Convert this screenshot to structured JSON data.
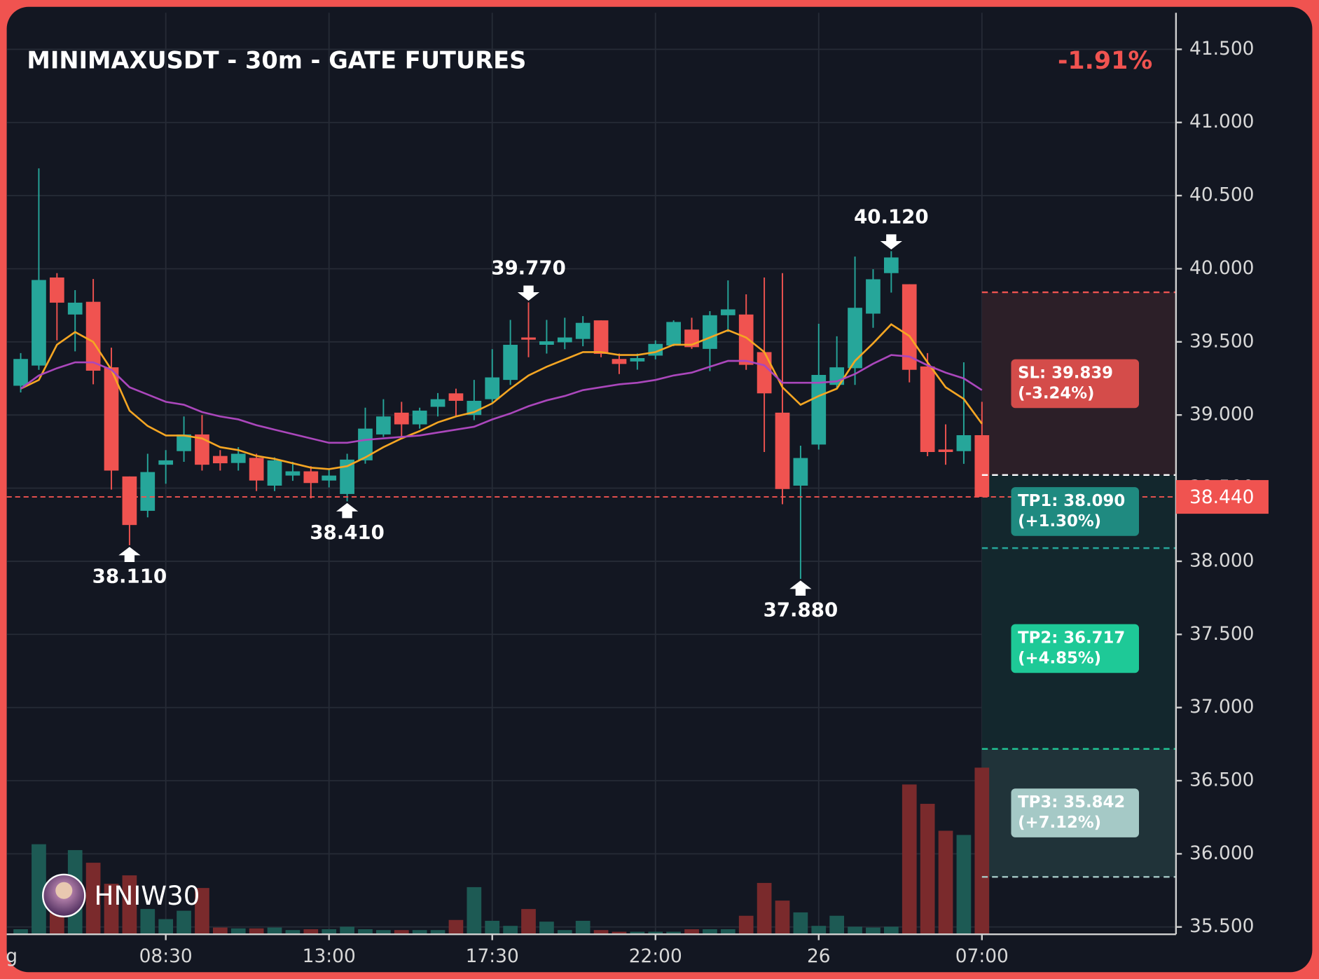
{
  "chart_data": {
    "type": "candlestick",
    "title": "MINIMAXUSDT - 30m - GATE FUTURES",
    "change": "-1.91%",
    "watermark": "HNIW30",
    "open": [
      39.2,
      39.338,
      39.94,
      39.687,
      39.774,
      39.326,
      38.58,
      38.345,
      38.66,
      38.753,
      38.867,
      38.72,
      38.672,
      38.707,
      38.517,
      38.586,
      38.615,
      38.552,
      38.46,
      38.69,
      38.867,
      39.016,
      38.936,
      39.056,
      39.148,
      39.0,
      39.108,
      39.24,
      39.53,
      39.48,
      39.497,
      39.52,
      39.647,
      39.383,
      39.366,
      39.406,
      39.475,
      39.584,
      39.452,
      39.682,
      39.687,
      39.43,
      39.016,
      38.517,
      38.798,
      39.206,
      39.32,
      39.693,
      39.97,
      39.894,
      39.332,
      38.764,
      38.753,
      38.862
    ],
    "high": [
      39.423,
      40.686,
      39.97,
      39.854,
      39.93,
      39.46,
      38.58,
      38.735,
      38.76,
      38.99,
      39.0,
      38.76,
      38.78,
      38.735,
      38.71,
      38.68,
      38.65,
      38.63,
      38.735,
      39.05,
      39.108,
      39.09,
      39.05,
      39.15,
      39.18,
      39.24,
      39.45,
      39.65,
      39.77,
      39.65,
      39.665,
      39.676,
      39.647,
      39.42,
      39.42,
      39.51,
      39.647,
      39.665,
      39.71,
      39.92,
      39.825,
      39.94,
      39.97,
      38.79,
      39.624,
      39.538,
      40.083,
      39.997,
      40.12,
      39.894,
      39.423,
      38.936,
      39.36,
      39.09
    ],
    "low": [
      39.154,
      39.309,
      39.51,
      39.435,
      39.21,
      38.49,
      38.11,
      38.3,
      38.53,
      38.68,
      38.62,
      38.62,
      38.62,
      38.48,
      38.48,
      38.55,
      38.43,
      38.505,
      38.41,
      38.667,
      38.85,
      38.85,
      38.907,
      38.99,
      38.99,
      38.965,
      39.08,
      39.206,
      39.395,
      39.42,
      39.45,
      39.47,
      39.395,
      39.28,
      39.31,
      39.38,
      39.47,
      39.452,
      39.3,
      39.567,
      39.309,
      38.747,
      38.39,
      37.88,
      38.764,
      39.183,
      39.206,
      39.596,
      39.837,
      39.223,
      38.718,
      38.66,
      38.666,
      38.44
    ],
    "close": [
      39.383,
      39.923,
      39.768,
      39.768,
      39.303,
      38.62,
      38.248,
      38.61,
      38.69,
      38.867,
      38.66,
      38.67,
      38.735,
      38.552,
      38.69,
      38.615,
      38.535,
      38.586,
      38.695,
      38.907,
      38.99,
      38.936,
      39.03,
      39.108,
      39.097,
      39.097,
      39.257,
      39.48,
      39.515,
      39.504,
      39.53,
      39.63,
      39.418,
      39.349,
      39.389,
      39.486,
      39.636,
      39.464,
      39.682,
      39.722,
      39.343,
      39.148,
      38.494,
      38.706,
      39.274,
      39.326,
      39.733,
      39.928,
      40.077,
      39.309,
      38.747,
      38.747,
      38.862,
      38.44
    ],
    "volume": [
      6,
      107,
      40,
      100,
      85,
      60,
      70,
      30,
      18,
      28,
      55,
      8,
      7,
      7,
      8,
      5,
      6,
      6,
      9,
      6,
      5,
      5,
      5,
      5,
      17,
      56,
      16,
      10,
      30,
      15,
      5,
      16,
      5,
      3,
      3,
      3,
      3,
      6,
      6,
      6,
      22,
      61,
      40,
      26,
      10,
      22,
      9,
      8,
      9,
      178,
      155,
      123,
      118,
      198
    ],
    "up_color": "#26a69a",
    "down_color": "#f05350",
    "vol_up_color": "#1d5a54",
    "vol_down_color": "#7a2a2c",
    "ma": [
      {
        "color": "#f5a623",
        "values": [
          39.18,
          39.24,
          39.48,
          39.567,
          39.5,
          39.31,
          39.03,
          38.925,
          38.86,
          38.86,
          38.84,
          38.78,
          38.76,
          38.72,
          38.7,
          38.67,
          38.64,
          38.63,
          38.65,
          38.71,
          38.78,
          38.84,
          38.89,
          38.95,
          38.99,
          39.02,
          39.08,
          39.18,
          39.27,
          39.33,
          39.38,
          39.43,
          39.43,
          39.41,
          39.41,
          39.43,
          39.48,
          39.48,
          39.53,
          39.58,
          39.53,
          39.43,
          39.19,
          39.07,
          39.13,
          39.18,
          39.37,
          39.49,
          39.62,
          39.54,
          39.36,
          39.19,
          39.11,
          38.94
        ]
      },
      {
        "color": "#ab47bc",
        "values": [
          39.18,
          39.27,
          39.32,
          39.36,
          39.36,
          39.31,
          39.19,
          39.14,
          39.09,
          39.07,
          39.02,
          38.99,
          38.97,
          38.93,
          38.9,
          38.87,
          38.84,
          38.81,
          38.81,
          38.83,
          38.84,
          38.85,
          38.86,
          38.88,
          38.9,
          38.92,
          38.97,
          39.01,
          39.06,
          39.1,
          39.13,
          39.17,
          39.19,
          39.21,
          39.22,
          39.24,
          39.27,
          39.29,
          39.33,
          39.37,
          39.37,
          39.34,
          39.22,
          39.22,
          39.22,
          39.23,
          39.28,
          39.35,
          39.41,
          39.4,
          39.34,
          39.29,
          39.25,
          39.17
        ]
      }
    ],
    "annotations": [
      {
        "candle": 6,
        "value": 38.11,
        "label": "38.110",
        "side": "low"
      },
      {
        "candle": 18,
        "value": 38.41,
        "label": "38.410",
        "side": "low"
      },
      {
        "candle": 28,
        "value": 39.77,
        "label": "39.770",
        "side": "high"
      },
      {
        "candle": 43,
        "value": 37.88,
        "label": "37.880",
        "side": "low"
      },
      {
        "candle": 48,
        "value": 40.12,
        "label": "40.120",
        "side": "high"
      }
    ],
    "last_price": {
      "value": 38.44,
      "label": "38.440",
      "color": "#f05350"
    },
    "trade": {
      "entry": 38.59,
      "sl": {
        "value": 39.839,
        "label": "SL: 39.839",
        "change": "(-3.24%)",
        "color": "#f05350",
        "box_color": "#d44c4a",
        "zone_color": "#2c1f28"
      },
      "tp": [
        {
          "value": 38.09,
          "label": "TP1: 38.090",
          "change": "(+1.30%)",
          "color": "#26a69a",
          "box_color": "#1f8a80"
        },
        {
          "value": 36.717,
          "label": "TP2: 36.717",
          "change": "(+4.85%)",
          "color": "#20c997",
          "box_color": "#1ec997"
        },
        {
          "value": 35.842,
          "label": "TP3: 35.842",
          "change": "(+7.12%)",
          "color": "#a5c9c6",
          "box_color": "#a5c9c6"
        }
      ],
      "zone_color": "#13272d"
    },
    "ylim": [
      35.45,
      41.75
    ],
    "yticks": [
      {
        "value": 35.5,
        "label": "35.500"
      },
      {
        "value": 36,
        "label": "36.000"
      },
      {
        "value": 36.5,
        "label": "36.500"
      },
      {
        "value": 37,
        "label": "37.000"
      },
      {
        "value": 37.5,
        "label": "37.500"
      },
      {
        "value": 38,
        "label": "38.000"
      },
      {
        "value": 38.5,
        "label": "38.500"
      },
      {
        "value": 39,
        "label": "39.000"
      },
      {
        "value": 39.5,
        "label": "39.500"
      },
      {
        "value": 40,
        "label": "40.000"
      },
      {
        "value": 40.5,
        "label": "40.500"
      },
      {
        "value": 41,
        "label": "41.000"
      },
      {
        "value": 41.5,
        "label": "41.500"
      }
    ],
    "xlim": [
      -0.77,
      63.7
    ],
    "xticks": [
      {
        "value": -0.5,
        "label": "g"
      },
      {
        "value": 8,
        "label": "08:30"
      },
      {
        "value": 17,
        "label": "13:00"
      },
      {
        "value": 26,
        "label": "17:30"
      },
      {
        "value": 35,
        "label": "22:00"
      },
      {
        "value": 44,
        "label": "26"
      },
      {
        "value": 53,
        "label": "07:00"
      }
    ],
    "grid": true
  }
}
